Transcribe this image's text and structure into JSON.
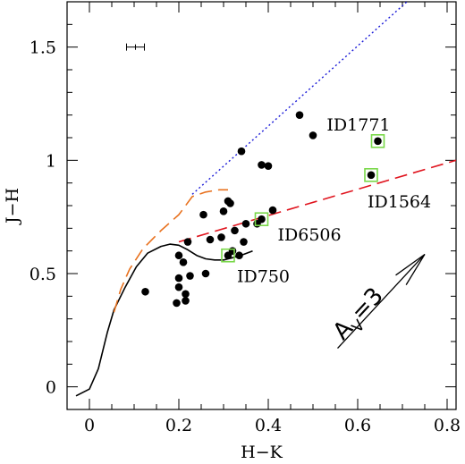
{
  "chart_data": {
    "type": "scatter",
    "title": "",
    "xlabel": "H−K",
    "ylabel": "J−H",
    "xlim": [
      -0.05,
      0.82
    ],
    "ylim": [
      -0.1,
      1.7
    ],
    "grid": false,
    "xticks": [
      0,
      0.2,
      0.4,
      0.6,
      0.8
    ],
    "xtick_labels": [
      "0",
      "0.2",
      "0.4",
      "0.6",
      "0.8"
    ],
    "yticks": [
      0,
      0.5,
      1,
      1.5
    ],
    "ytick_labels": [
      "0",
      "0.5",
      "1",
      "1.5"
    ],
    "x_minor_step": 0.05,
    "y_minor_step": 0.1,
    "series": [
      {
        "style": "scatter",
        "color": "#000000",
        "points": [
          [
            0.125,
            0.42
          ],
          [
            0.195,
            0.37
          ],
          [
            0.2,
            0.44
          ],
          [
            0.2,
            0.48
          ],
          [
            0.21,
            0.55
          ],
          [
            0.2,
            0.58
          ],
          [
            0.215,
            0.41
          ],
          [
            0.225,
            0.49
          ],
          [
            0.215,
            0.38
          ],
          [
            0.26,
            0.5
          ],
          [
            0.22,
            0.64
          ],
          [
            0.255,
            0.76
          ],
          [
            0.27,
            0.65
          ],
          [
            0.295,
            0.66
          ],
          [
            0.3,
            0.775
          ],
          [
            0.31,
            0.82
          ],
          [
            0.315,
            0.81
          ],
          [
            0.32,
            0.6
          ],
          [
            0.325,
            0.69
          ],
          [
            0.335,
            0.58
          ],
          [
            0.345,
            0.64
          ],
          [
            0.35,
            0.72
          ],
          [
            0.375,
            0.72
          ],
          [
            0.385,
            0.74
          ],
          [
            0.41,
            0.78
          ],
          [
            0.34,
            1.04
          ],
          [
            0.385,
            0.98
          ],
          [
            0.4,
            0.975
          ],
          [
            0.47,
            1.2
          ],
          [
            0.5,
            1.11
          ],
          [
            0.31,
            0.58
          ],
          [
            0.63,
            0.935
          ],
          [
            0.645,
            1.085
          ]
        ]
      },
      {
        "style": "solid-line",
        "color": "#000000",
        "points": [
          [
            -0.03,
            -0.04
          ],
          [
            0.0,
            -0.01
          ],
          [
            0.02,
            0.08
          ],
          [
            0.04,
            0.24
          ],
          [
            0.055,
            0.34
          ],
          [
            0.08,
            0.44
          ],
          [
            0.105,
            0.53
          ],
          [
            0.13,
            0.59
          ],
          [
            0.16,
            0.62
          ],
          [
            0.18,
            0.63
          ],
          [
            0.2,
            0.625
          ],
          [
            0.22,
            0.605
          ],
          [
            0.24,
            0.58
          ],
          [
            0.26,
            0.565
          ],
          [
            0.28,
            0.56
          ],
          [
            0.3,
            0.56
          ],
          [
            0.32,
            0.57
          ],
          [
            0.345,
            0.585
          ],
          [
            0.365,
            0.6
          ]
        ]
      },
      {
        "style": "dashed-line",
        "color": "#e8711e",
        "points": [
          [
            0.055,
            0.33
          ],
          [
            0.07,
            0.43
          ],
          [
            0.09,
            0.52
          ],
          [
            0.12,
            0.61
          ],
          [
            0.16,
            0.69
          ],
          [
            0.2,
            0.76
          ],
          [
            0.23,
            0.84
          ],
          [
            0.26,
            0.86
          ],
          [
            0.29,
            0.87
          ],
          [
            0.31,
            0.87
          ]
        ]
      },
      {
        "style": "dashed-line",
        "color": "#e0141e",
        "points": [
          [
            0.2,
            0.64
          ],
          [
            0.82,
            1.0
          ]
        ]
      },
      {
        "style": "dotted-line",
        "color": "#1a1ad8",
        "points": [
          [
            0.23,
            0.85
          ],
          [
            0.71,
            1.7
          ]
        ]
      }
    ],
    "highlighted": [
      {
        "label": "ID1771",
        "x": 0.645,
        "y": 1.085
      },
      {
        "label": "ID1564",
        "x": 0.63,
        "y": 0.935
      },
      {
        "label": "ID6506",
        "x": 0.385,
        "y": 0.74
      },
      {
        "label": "ID750",
        "x": 0.31,
        "y": 0.58
      }
    ],
    "highlight_color": "#7ad84a",
    "error_bar": {
      "x": 0.103,
      "y": 1.5,
      "dx": 0.02,
      "dy": 0.012
    },
    "reddening_vector": {
      "label": "A",
      "label_sub": "V",
      "label_value": "=3",
      "from": [
        0.555,
        0.17
      ],
      "to": [
        0.75,
        0.585
      ]
    }
  }
}
